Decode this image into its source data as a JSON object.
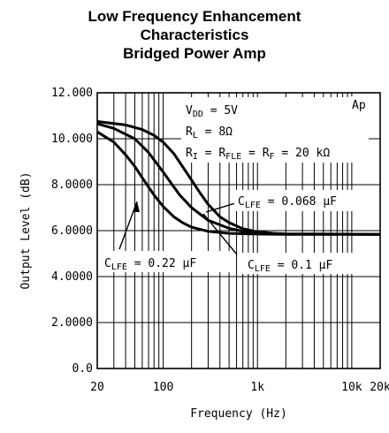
{
  "chart_data": {
    "type": "line",
    "title": [
      "Low Frequency Enhancement",
      "Characteristics",
      "Bridged Power Amp"
    ],
    "xlabel": "Frequency (Hz)",
    "ylabel": "Output Level (dB)",
    "xscale": "log",
    "xlim": [
      20,
      20000
    ],
    "ylim": [
      0,
      12
    ],
    "x_ticks": [
      {
        "value": 20,
        "label": "20"
      },
      {
        "value": 100,
        "label": "100"
      },
      {
        "value": 1000,
        "label": "1k"
      },
      {
        "value": 10000,
        "label": "10k"
      },
      {
        "value": 20000,
        "label": "20k"
      }
    ],
    "y_ticks": [
      {
        "value": 0,
        "label": "0.0"
      },
      {
        "value": 2,
        "label": "2.0000"
      },
      {
        "value": 4,
        "label": "4.0000"
      },
      {
        "value": 6,
        "label": "6.0000"
      },
      {
        "value": 8,
        "label": "8.0000"
      },
      {
        "value": 10,
        "label": "10.000"
      },
      {
        "value": 12,
        "label": "12.000"
      }
    ],
    "grid": true,
    "watermark": "Ap",
    "conditions": [
      {
        "sym": "V",
        "sub": "DD",
        "rest": " = 5V"
      },
      {
        "sym": "R",
        "sub": "L",
        "rest": " = 8Ω"
      },
      {
        "sym": "R",
        "sub": "I",
        "rest": " = R",
        "sub2": "FLE",
        "rest2": " = R",
        "sub3": "F",
        "rest3": " = 20 kΩ"
      }
    ],
    "series": [
      {
        "name": "CLFE = 0.22 μF",
        "points": [
          [
            20,
            10.3
          ],
          [
            30,
            9.85
          ],
          [
            40,
            9.3
          ],
          [
            50,
            8.8
          ],
          [
            60,
            8.3
          ],
          [
            70,
            7.9
          ],
          [
            80,
            7.55
          ],
          [
            100,
            7.05
          ],
          [
            130,
            6.6
          ],
          [
            160,
            6.35
          ],
          [
            200,
            6.15
          ],
          [
            300,
            5.97
          ],
          [
            500,
            5.88
          ],
          [
            1000,
            5.85
          ],
          [
            2000,
            5.84
          ],
          [
            20000,
            5.84
          ]
        ]
      },
      {
        "name": "CLFE = 0.1 μF",
        "points": [
          [
            20,
            10.65
          ],
          [
            30,
            10.45
          ],
          [
            50,
            10.0
          ],
          [
            70,
            9.4
          ],
          [
            100,
            8.55
          ],
          [
            130,
            7.9
          ],
          [
            150,
            7.55
          ],
          [
            200,
            7.0
          ],
          [
            300,
            6.45
          ],
          [
            500,
            6.1
          ],
          [
            700,
            5.97
          ],
          [
            1000,
            5.9
          ],
          [
            2000,
            5.85
          ],
          [
            20000,
            5.84
          ]
        ]
      },
      {
        "name": "CLFE = 0.068 μF",
        "points": [
          [
            20,
            10.75
          ],
          [
            40,
            10.6
          ],
          [
            60,
            10.4
          ],
          [
            80,
            10.15
          ],
          [
            100,
            9.85
          ],
          [
            130,
            9.35
          ],
          [
            160,
            8.8
          ],
          [
            200,
            8.2
          ],
          [
            250,
            7.6
          ],
          [
            300,
            7.15
          ],
          [
            400,
            6.6
          ],
          [
            500,
            6.35
          ],
          [
            700,
            6.08
          ],
          [
            1000,
            5.95
          ],
          [
            1500,
            5.88
          ],
          [
            2000,
            5.86
          ],
          [
            20000,
            5.84
          ]
        ]
      }
    ],
    "annotations": [
      {
        "sym": "C",
        "sub": "LFE",
        "rest": " = 0.068 μF"
      },
      {
        "sym": "C",
        "sub": "LFE",
        "rest": " = 0.22 μF"
      },
      {
        "sym": "C",
        "sub": "LFE",
        "rest": " = 0.1 μF"
      }
    ]
  }
}
